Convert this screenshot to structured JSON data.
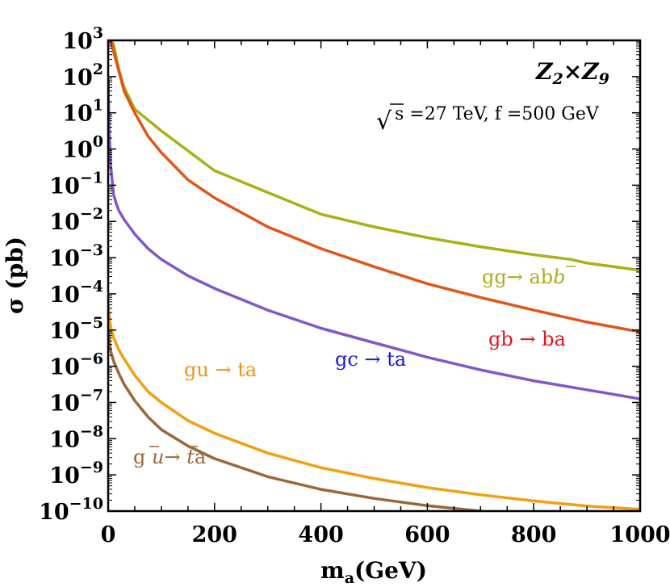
{
  "chart_data": {
    "type": "line",
    "xlabel_main": "m",
    "xlabel_sub": "a",
    "xlabel_unit": "(GeV)",
    "ylabel": "σ (pb)",
    "xlim": [
      0,
      1000
    ],
    "ylim_log10": [
      -10,
      3
    ],
    "x_ticks": [
      0,
      200,
      400,
      600,
      800,
      1000
    ],
    "y_tick_exponents": [
      3,
      2,
      1,
      0,
      -1,
      -2,
      -3,
      -4,
      -5,
      -6,
      -7,
      -8,
      -9,
      -10
    ],
    "y_tick_base": "10",
    "annotations": {
      "model_z2": "Z",
      "model_sub2": "2",
      "model_times": "×",
      "model_z9": "Z",
      "model_sub9": "9",
      "sqrt_symbol": "√",
      "energy_text": "s =27 TeV, f =500 GeV"
    },
    "series": [
      {
        "name": "gg→ab b̄",
        "label_parts": [
          "gg→ ab",
          "b"
        ],
        "color": "#a8b01a",
        "label_color": "#a8b01a",
        "x": [
          5,
          10,
          20,
          30,
          50,
          100,
          200,
          300,
          400,
          500,
          600,
          700,
          800,
          870,
          900,
          1000
        ],
        "log10_y": [
          3.0,
          2.9,
          2.2,
          1.7,
          1.1,
          0.5,
          -0.6,
          -1.2,
          -1.8,
          -2.15,
          -2.45,
          -2.7,
          -2.92,
          -3.05,
          -3.15,
          -3.35
        ]
      },
      {
        "name": "gb→ba",
        "label_parts": [
          "gb → ba"
        ],
        "color": "#e0561a",
        "label_color": "#e8121e",
        "x": [
          5,
          10,
          20,
          30,
          50,
          75,
          100,
          150,
          200,
          300,
          400,
          500,
          600,
          700,
          800,
          900,
          1000
        ],
        "log10_y": [
          3.0,
          2.7,
          2.15,
          1.6,
          1.0,
          0.35,
          -0.1,
          -0.85,
          -1.35,
          -2.15,
          -2.75,
          -3.25,
          -3.72,
          -4.1,
          -4.45,
          -4.78,
          -5.05
        ]
      },
      {
        "name": "gc→ta",
        "label_parts": [
          "gc → ta"
        ],
        "color": "#8058c8",
        "label_color": "#1818d8",
        "x": [
          0,
          2,
          5,
          10,
          15,
          20,
          30,
          50,
          75,
          100,
          150,
          200,
          300,
          400,
          500,
          600,
          700,
          800,
          900,
          1000
        ],
        "log10_y": [
          1.9,
          0.5,
          -0.5,
          -1.25,
          -1.5,
          -1.7,
          -1.95,
          -2.35,
          -2.75,
          -3.05,
          -3.5,
          -3.85,
          -4.45,
          -4.95,
          -5.35,
          -5.75,
          -6.1,
          -6.4,
          -6.65,
          -6.9
        ]
      },
      {
        "name": "gu→ta",
        "label_parts": [
          "gu → ta"
        ],
        "color": "#f0a010",
        "label_color": "#f09218",
        "x": [
          0,
          3,
          5,
          10,
          20,
          30,
          50,
          75,
          100,
          150,
          200,
          300,
          400,
          500,
          600,
          700,
          800,
          900,
          1000
        ],
        "log10_y": [
          -4.3,
          -4.75,
          -4.95,
          -5.2,
          -5.55,
          -5.8,
          -6.25,
          -6.7,
          -7.0,
          -7.5,
          -7.85,
          -8.4,
          -8.8,
          -9.1,
          -9.35,
          -9.55,
          -9.72,
          -9.86,
          -9.95
        ]
      },
      {
        "name": "g ū→t̄a",
        "label_parts": [
          "g ",
          "u",
          "→ ",
          "t",
          "a"
        ],
        "color": "#9a6838",
        "label_color": "#9a6838",
        "x": [
          0,
          3,
          5,
          10,
          20,
          30,
          50,
          75,
          100,
          150,
          200,
          300,
          400,
          500,
          600,
          700,
          720
        ],
        "log10_y": [
          -5.0,
          -5.4,
          -5.6,
          -5.85,
          -6.2,
          -6.5,
          -6.95,
          -7.4,
          -7.75,
          -8.2,
          -8.55,
          -9.05,
          -9.4,
          -9.65,
          -9.85,
          -10.0,
          -10.05
        ]
      }
    ]
  }
}
